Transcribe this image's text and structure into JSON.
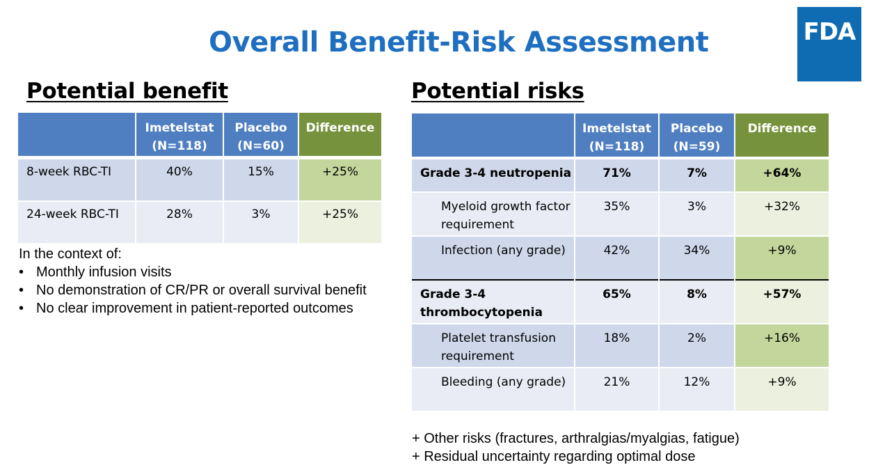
{
  "title": "Overall Benefit-Risk Assessment",
  "logo": "FDA",
  "benefit": {
    "heading": "Potential benefit",
    "headers": [
      "",
      "Imetelstat\n(N=118)",
      "Placebo\n(N=60)",
      "Difference"
    ],
    "rows": [
      {
        "label": "8-week RBC-TI",
        "imetelstat": "40%",
        "placebo": "15%",
        "difference": "+25%"
      },
      {
        "label": "24-week RBC-TI",
        "imetelstat": "28%",
        "placebo": "3%",
        "difference": "+25%"
      }
    ]
  },
  "context": {
    "intro": "In the context of:",
    "items": [
      "Monthly infusion visits",
      "No demonstration of CR/PR or overall survival benefit",
      "No clear improvement in patient-reported outcomes"
    ]
  },
  "risks": {
    "heading": "Potential risks",
    "headers": [
      "",
      "Imetelstat\n(N=118)",
      "Placebo\n(N=59)",
      "Difference"
    ],
    "rows": [
      {
        "label": "Grade 3-4 neutropenia",
        "imetelstat": "71%",
        "placebo": "7%",
        "difference": "+64%"
      },
      {
        "label": "Myeloid growth factor requirement",
        "imetelstat": "35%",
        "placebo": "3%",
        "difference": "+32%"
      },
      {
        "label": "Infection (any grade)",
        "imetelstat": "42%",
        "placebo": "34%",
        "difference": "+9%"
      },
      {
        "label": "Grade 3-4 thrombocytopenia",
        "imetelstat": "65%",
        "placebo": "8%",
        "difference": "+57%"
      },
      {
        "label": "Platelet transfusion requirement",
        "imetelstat": "18%",
        "placebo": "2%",
        "difference": "+16%"
      },
      {
        "label": "Bleeding (any grade)",
        "imetelstat": "21%",
        "placebo": "12%",
        "difference": "+9%"
      }
    ]
  },
  "notes": [
    "+ Other risks (fractures, arthralgias/myalgias, fatigue)",
    "+ Residual uncertainty regarding optimal dose"
  ]
}
